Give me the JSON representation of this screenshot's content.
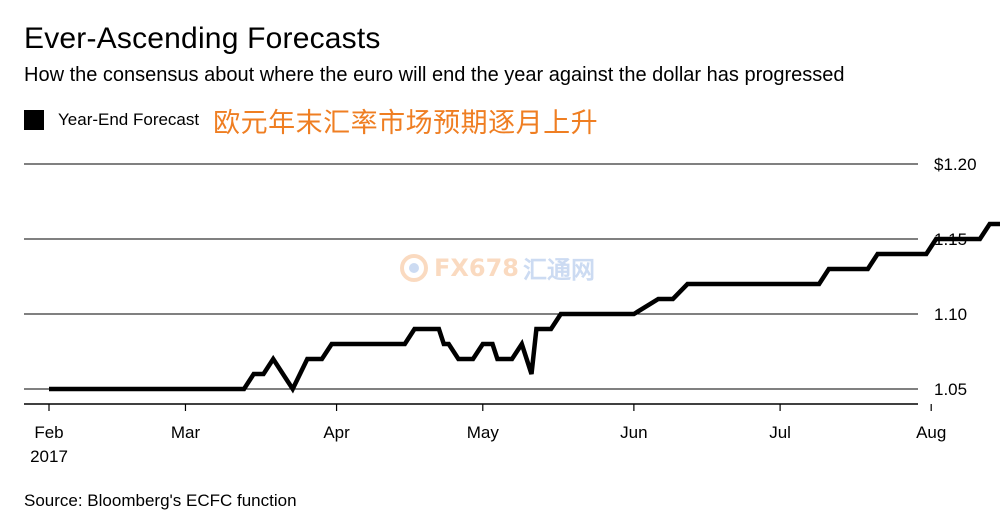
{
  "header": {
    "title": "Ever-Ascending Forecasts",
    "subtitle": "How the consensus about where the euro will end the year against the dollar has progressed"
  },
  "legend": {
    "label": "Year-End Forecast",
    "annotation": "欧元年末汇率市场预期逐月上升",
    "annotation_color": "#ef7e22"
  },
  "watermark": {
    "icon": "fx678-logo-icon",
    "text": "FX678",
    "text_cn": "汇通网"
  },
  "footer": {
    "source": "Source: Bloomberg's ECFC function"
  },
  "chart_data": {
    "type": "line",
    "title": "Ever-Ascending Forecasts",
    "subtitle": "How the consensus about where the euro will end the year against the dollar has progressed",
    "xlabel": "",
    "ylabel": "",
    "ylim": [
      1.035,
      1.2
    ],
    "xlim": [
      "2017-02-01",
      "2017-08-30"
    ],
    "y_ticks": [
      {
        "value": 1.05,
        "label": "1.05"
      },
      {
        "value": 1.1,
        "label": "1.10"
      },
      {
        "value": 1.15,
        "label": "1.15"
      },
      {
        "value": 1.2,
        "label": "$1.20"
      }
    ],
    "x_ticks": [
      {
        "date": "2017-02-01",
        "label": "Feb",
        "sublabel": "2017"
      },
      {
        "date": "2017-03-01",
        "label": "Mar"
      },
      {
        "date": "2017-04-01",
        "label": "Apr"
      },
      {
        "date": "2017-05-01",
        "label": "May"
      },
      {
        "date": "2017-06-01",
        "label": "Jun"
      },
      {
        "date": "2017-07-01",
        "label": "Jul"
      },
      {
        "date": "2017-08-01",
        "label": "Aug"
      }
    ],
    "grid": true,
    "series": [
      {
        "name": "Year-End Forecast",
        "color": "#000000",
        "points": [
          [
            "2017-02-01",
            1.05
          ],
          [
            "2017-03-13",
            1.05
          ],
          [
            "2017-03-15",
            1.06
          ],
          [
            "2017-03-17",
            1.06
          ],
          [
            "2017-03-19",
            1.07
          ],
          [
            "2017-03-23",
            1.05
          ],
          [
            "2017-03-26",
            1.07
          ],
          [
            "2017-03-29",
            1.07
          ],
          [
            "2017-03-31",
            1.08
          ],
          [
            "2017-04-10",
            1.08
          ],
          [
            "2017-04-11",
            1.08
          ],
          [
            "2017-04-15",
            1.08
          ],
          [
            "2017-04-17",
            1.09
          ],
          [
            "2017-04-22",
            1.09
          ],
          [
            "2017-04-23",
            1.08
          ],
          [
            "2017-04-24",
            1.08
          ],
          [
            "2017-04-26",
            1.07
          ],
          [
            "2017-04-29",
            1.07
          ],
          [
            "2017-05-01",
            1.08
          ],
          [
            "2017-05-03",
            1.08
          ],
          [
            "2017-05-04",
            1.07
          ],
          [
            "2017-05-07",
            1.07
          ],
          [
            "2017-05-09",
            1.08
          ],
          [
            "2017-05-11",
            1.06
          ],
          [
            "2017-05-12",
            1.09
          ],
          [
            "2017-05-15",
            1.09
          ],
          [
            "2017-05-17",
            1.1
          ],
          [
            "2017-05-30",
            1.1
          ],
          [
            "2017-06-01",
            1.1
          ],
          [
            "2017-06-06",
            1.11
          ],
          [
            "2017-06-09",
            1.11
          ],
          [
            "2017-06-12",
            1.12
          ],
          [
            "2017-06-30",
            1.12
          ],
          [
            "2017-07-09",
            1.12
          ],
          [
            "2017-07-11",
            1.13
          ],
          [
            "2017-07-19",
            1.13
          ],
          [
            "2017-07-21",
            1.14
          ],
          [
            "2017-07-31",
            1.14
          ],
          [
            "2017-08-02",
            1.15
          ],
          [
            "2017-08-11",
            1.15
          ],
          [
            "2017-08-13",
            1.16
          ],
          [
            "2017-08-20",
            1.16
          ]
        ]
      }
    ]
  },
  "source": "Bloomberg's ECFC function"
}
